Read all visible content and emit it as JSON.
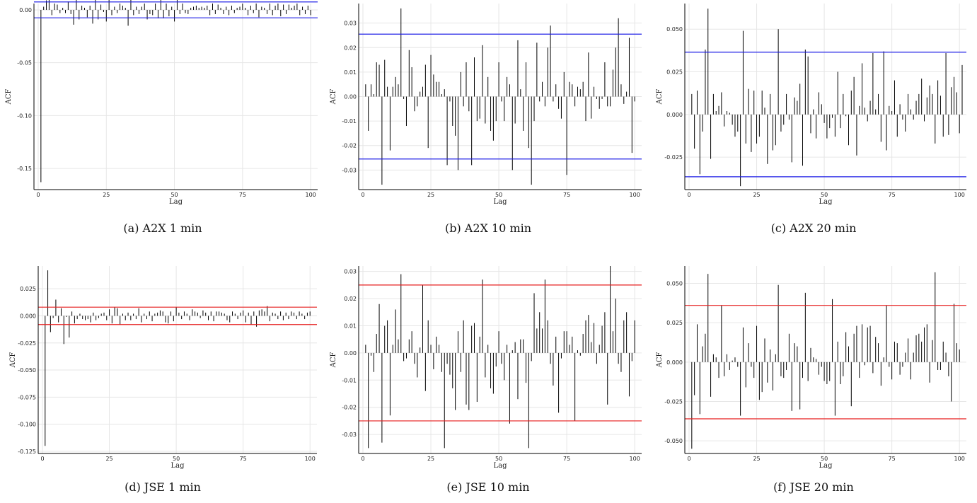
{
  "colors": {
    "bar": "#000000",
    "grid": "#e6e6e6",
    "axis": "#000000",
    "band_blue": "#1e1ee6",
    "band_red": "#e61e1e"
  },
  "chart_data": [
    {
      "id": "a",
      "type": "bar",
      "caption": "(a) A2X 1 min",
      "xlabel": "Lag",
      "ylabel": "ACF",
      "xlim": [
        0,
        101
      ],
      "ylim": [
        -0.17,
        0.006
      ],
      "xticks": [
        0,
        25,
        50,
        75,
        100
      ],
      "yticks": [
        0,
        -0.05,
        -0.1,
        -0.15
      ],
      "ytick_labels": [
        "0.00",
        "-0.05",
        "-0.10",
        "-0.15"
      ],
      "conf_band": 0.0075,
      "band_color": "blue",
      "values": [
        -0.163,
        0.003,
        0.009,
        0.01,
        -0.005,
        0.006,
        0.005,
        -0.003,
        0.002,
        -0.003,
        0.008,
        -0.004,
        -0.014,
        0.014,
        -0.009,
        0.004,
        0.002,
        -0.007,
        0.004,
        -0.013,
        0.018,
        -0.009,
        0.005,
        -0.002,
        -0.011,
        0.011,
        -0.005,
        0.003,
        -0.003,
        0.006,
        0.004,
        0.002,
        -0.015,
        0.013,
        -0.005,
        0.003,
        -0.004,
        0.003,
        0.006,
        -0.009,
        -0.004,
        -0.005,
        0.006,
        -0.008,
        0.018,
        -0.008,
        0.006,
        -0.006,
        0.003,
        -0.011,
        0.016,
        -0.004,
        0.006,
        -0.003,
        -0.004,
        0.002,
        0.003,
        0.004,
        0.002,
        0.003,
        0.002,
        0.004,
        -0.005,
        0.006,
        -0.004,
        0.005,
        0.002,
        -0.004,
        0.003,
        -0.005,
        0.004,
        -0.003,
        0.002,
        0.003,
        0.006,
        0.002,
        -0.005,
        0.004,
        -0.003,
        0.006,
        -0.007,
        0.003,
        0.002,
        -0.004,
        0.006,
        -0.005,
        0.004,
        0.006,
        -0.006,
        0.005,
        -0.004,
        0.005,
        0.002,
        0.004,
        0.006,
        -0.005,
        0.003,
        -0.004,
        0.004,
        -0.005
      ]
    },
    {
      "id": "b",
      "type": "bar",
      "caption": "(b) A2X 10 min",
      "xlabel": "Lag",
      "ylabel": "ACF",
      "xlim": [
        0,
        101
      ],
      "ylim": [
        -0.038,
        0.038
      ],
      "xticks": [
        0,
        25,
        50,
        75,
        100
      ],
      "yticks": [
        0.03,
        0.02,
        0.01,
        0,
        -0.01,
        -0.02,
        -0.03
      ],
      "ytick_labels": [
        "0.03",
        "0.02",
        "0.01",
        "0.00",
        "-0.01",
        "-0.02",
        "-0.03"
      ],
      "conf_band": 0.0255,
      "band_color": "blue",
      "values": [
        0.005,
        -0.014,
        0.005,
        0.001,
        0.014,
        0.013,
        -0.036,
        0.015,
        0.004,
        -0.022,
        0.004,
        0.008,
        0.005,
        0.036,
        -0.001,
        -0.012,
        0.019,
        0.012,
        -0.006,
        -0.004,
        0.002,
        0.004,
        0.013,
        -0.021,
        0.017,
        0.009,
        0.006,
        0.006,
        0.001,
        0.003,
        -0.028,
        -0.002,
        -0.012,
        -0.016,
        -0.03,
        0.01,
        -0.004,
        0.014,
        -0.006,
        -0.028,
        0.016,
        -0.01,
        -0.009,
        0.021,
        -0.011,
        0.008,
        -0.014,
        -0.018,
        -0.01,
        0.014,
        -0.002,
        -0.01,
        0.008,
        0.005,
        -0.03,
        -0.011,
        0.023,
        0.003,
        -0.014,
        0.014,
        -0.021,
        -0.036,
        -0.01,
        0.022,
        -0.002,
        0.006,
        -0.004,
        0.02,
        0.029,
        -0.002,
        0.005,
        -0.005,
        -0.009,
        0.01,
        -0.032,
        0.006,
        0.005,
        -0.004,
        0.004,
        0.003,
        0.006,
        -0.01,
        0.018,
        -0.009,
        0.004,
        -0.001,
        -0.005,
        -0.001,
        0.014,
        -0.004,
        -0.004,
        0.011,
        0.02,
        0.032,
        0.005,
        -0.003,
        0.002,
        0.024,
        -0.023,
        -0.002
      ]
    },
    {
      "id": "c",
      "type": "bar",
      "caption": "(c) A2X 20 min",
      "xlabel": "Lag",
      "ylabel": "ACF",
      "xlim": [
        0,
        101
      ],
      "ylim": [
        -0.044,
        0.065
      ],
      "xticks": [
        0,
        25,
        50,
        75,
        100
      ],
      "yticks": [
        0.05,
        0.025,
        0,
        -0.025
      ],
      "ytick_labels": [
        "0.050",
        "0.025",
        "0.000",
        "-0.025"
      ],
      "conf_band": 0.0365,
      "band_color": "blue",
      "values": [
        0.012,
        -0.02,
        0.014,
        -0.035,
        -0.01,
        0.038,
        0.062,
        -0.026,
        0.012,
        0.002,
        0.005,
        0.013,
        -0.007,
        0.002,
        0.001,
        -0.006,
        -0.013,
        -0.01,
        -0.042,
        0.049,
        -0.017,
        0.015,
        -0.022,
        0.014,
        -0.017,
        -0.013,
        0.014,
        0.004,
        -0.029,
        0.012,
        -0.021,
        -0.018,
        0.05,
        -0.01,
        -0.006,
        0.012,
        -0.003,
        -0.028,
        0.01,
        0.008,
        0.018,
        -0.03,
        0.038,
        0.034,
        -0.011,
        0.003,
        -0.014,
        0.013,
        0.006,
        -0.005,
        -0.014,
        -0.008,
        -0.002,
        -0.013,
        0.025,
        -0.008,
        0.012,
        -0.001,
        -0.018,
        0.014,
        0.022,
        -0.024,
        0.005,
        0.03,
        0.004,
        -0.004,
        0.008,
        0.036,
        0.003,
        0.012,
        -0.016,
        0.037,
        -0.021,
        0.005,
        0.002,
        0.02,
        -0.013,
        0.006,
        -0.003,
        -0.01,
        0.012,
        0.003,
        -0.003,
        0.008,
        0.012,
        0.021,
        -0.004,
        0.01,
        0.017,
        0.012,
        -0.017,
        0.02,
        0.011,
        -0.013,
        0.036,
        -0.012,
        0.016,
        0.022,
        0.013,
        -0.011,
        0.029
      ]
    },
    {
      "id": "d",
      "type": "bar",
      "caption": "(d) JSE 1 min",
      "xlabel": "Lag",
      "ylabel": "ACF",
      "xlim": [
        0,
        101
      ],
      "ylim": [
        -0.127,
        0.046
      ],
      "xticks": [
        0,
        25,
        50,
        75,
        100
      ],
      "yticks": [
        0.025,
        0,
        -0.025,
        -0.05,
        -0.075,
        -0.1,
        -0.125
      ],
      "ytick_labels": [
        "0.025",
        "0.000",
        "-0.025",
        "-0.050",
        "-0.075",
        "-0.100",
        "-0.125"
      ],
      "conf_band": 0.008,
      "band_color": "red",
      "values": [
        -0.12,
        0.042,
        -0.015,
        -0.002,
        0.015,
        -0.006,
        0.007,
        -0.026,
        -0.001,
        -0.02,
        0.004,
        -0.007,
        -0.003,
        0.002,
        -0.003,
        -0.004,
        -0.003,
        -0.006,
        0.003,
        -0.004,
        -0.002,
        0.002,
        0.003,
        -0.004,
        0.006,
        -0.007,
        0.008,
        0.007,
        -0.008,
        0.002,
        -0.004,
        0.003,
        -0.004,
        0.002,
        -0.003,
        0.007,
        -0.006,
        0.002,
        -0.003,
        0.004,
        -0.005,
        0.002,
        0.003,
        0.005,
        0.004,
        -0.006,
        -0.007,
        0.004,
        -0.005,
        0.008,
        0.003,
        -0.003,
        0.004,
        0.002,
        -0.004,
        0.006,
        0.004,
        0.003,
        -0.002,
        0.005,
        0.003,
        -0.004,
        0.004,
        -0.005,
        0.004,
        0.004,
        0.003,
        0.002,
        -0.004,
        -0.006,
        0.004,
        0.002,
        -0.003,
        0.003,
        0.005,
        -0.006,
        0.003,
        -0.008,
        0.004,
        -0.01,
        0.005,
        0.006,
        0.004,
        0.009,
        -0.005,
        0.003,
        0.002,
        -0.003,
        0.004,
        -0.004,
        0.003,
        -0.003,
        0.004,
        0.003,
        -0.003,
        0.004,
        0.002,
        -0.003,
        0.003,
        0.004
      ]
    },
    {
      "id": "e",
      "type": "bar",
      "caption": "(e) JSE 10 min",
      "xlabel": "Lag",
      "ylabel": "ACF",
      "xlim": [
        0,
        101
      ],
      "ylim": [
        -0.037,
        0.032
      ],
      "xticks": [
        0,
        25,
        50,
        75,
        100
      ],
      "yticks": [
        0.03,
        0.02,
        0.01,
        0,
        -0.01,
        -0.02,
        -0.03
      ],
      "ytick_labels": [
        "0.03",
        "0.02",
        "0.01",
        "0.00",
        "-0.01",
        "-0.02",
        "-0.03"
      ],
      "conf_band": 0.025,
      "band_color": "red",
      "values": [
        0.003,
        -0.035,
        -0.001,
        -0.007,
        0.007,
        0.018,
        -0.033,
        0.01,
        0.012,
        -0.023,
        0.003,
        0.016,
        0.005,
        0.029,
        -0.003,
        -0.002,
        0.005,
        0.008,
        -0.004,
        -0.009,
        0.002,
        0.025,
        -0.014,
        0.012,
        0.003,
        -0.006,
        0.006,
        0.003,
        -0.007,
        -0.035,
        -0.004,
        -0.008,
        -0.013,
        -0.021,
        0.008,
        -0.007,
        0.012,
        -0.019,
        -0.021,
        0.01,
        0.011,
        -0.018,
        0.006,
        0.027,
        -0.009,
        0.003,
        -0.013,
        -0.015,
        -0.005,
        0.008,
        -0.004,
        -0.01,
        0.003,
        -0.026,
        0.001,
        0.004,
        -0.017,
        0.005,
        0.005,
        -0.011,
        -0.035,
        -0.003,
        0.022,
        0.009,
        0.015,
        0.009,
        0.027,
        0.012,
        -0.004,
        -0.012,
        0.006,
        -0.022,
        -0.002,
        0.008,
        0.008,
        0.003,
        0.006,
        -0.025,
        0.001,
        -0.001,
        0.007,
        0.012,
        0.014,
        0.004,
        0.011,
        -0.004,
        0.003,
        0.01,
        0.015,
        -0.019,
        0.032,
        0.008,
        0.02,
        -0.004,
        -0.007,
        0.012,
        0.015,
        -0.016,
        -0.003,
        0.012
      ]
    },
    {
      "id": "f",
      "type": "bar",
      "caption": "(f) JSE 20 min",
      "xlabel": "Lag",
      "ylabel": "ACF",
      "xlim": [
        0,
        101
      ],
      "ylim": [
        -0.058,
        0.061
      ],
      "xticks": [
        0,
        25,
        50,
        75,
        100
      ],
      "yticks": [
        0.05,
        0.025,
        0,
        -0.025,
        -0.05
      ],
      "ytick_labels": [
        "0.050",
        "0.025",
        "0.000",
        "-0.025",
        "-0.050"
      ],
      "conf_band": 0.036,
      "band_color": "red",
      "values": [
        -0.055,
        -0.021,
        0.024,
        -0.033,
        0.01,
        0.018,
        0.056,
        -0.022,
        0.005,
        0.003,
        -0.01,
        0.036,
        -0.009,
        0.005,
        -0.005,
        0.001,
        0.003,
        -0.003,
        -0.034,
        0.022,
        -0.016,
        0.012,
        -0.003,
        -0.01,
        0.023,
        -0.024,
        -0.019,
        0.015,
        -0.013,
        0.008,
        -0.018,
        0.005,
        0.049,
        -0.009,
        -0.01,
        -0.005,
        0.018,
        -0.031,
        0.012,
        0.01,
        -0.03,
        -0.01,
        0.044,
        -0.012,
        0.009,
        0.003,
        0.002,
        -0.008,
        -0.003,
        -0.012,
        -0.014,
        -0.012,
        0.04,
        -0.034,
        0.013,
        -0.014,
        -0.009,
        0.019,
        0.01,
        -0.028,
        0.018,
        0.023,
        -0.01,
        0.024,
        -0.002,
        0.022,
        0.023,
        -0.007,
        0.016,
        0.012,
        -0.015,
        0.003,
        0.036,
        -0.003,
        -0.011,
        0.013,
        0.012,
        -0.008,
        -0.003,
        0.006,
        0.015,
        -0.011,
        0.006,
        0.017,
        0.018,
        0.013,
        0.022,
        0.024,
        -0.013,
        0.014,
        0.057,
        -0.005,
        -0.005,
        0.013,
        0.006,
        -0.009,
        -0.025,
        0.037,
        0.012,
        0.008
      ]
    }
  ]
}
